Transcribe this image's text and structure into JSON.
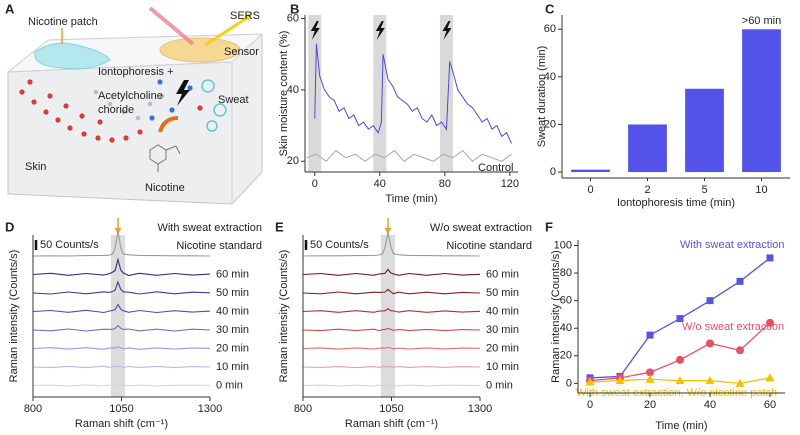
{
  "illustration": {
    "panel_label": "A",
    "labels": {
      "patch": "Nicotine patch",
      "sers": "SERS",
      "sensor": "Sensor",
      "iontophoresis": "Iontophoresis +",
      "acetylcholine": [
        "Acetylcholine",
        "choride"
      ],
      "sweat": "Sweat",
      "skin": "Skin",
      "nicotine": "Nicotine"
    }
  },
  "chart_data": [
    {
      "type": "line",
      "panel_label": "B",
      "x_label": "Time (min)",
      "y_label": "Skin moisture content (%)",
      "xlim": [
        -6,
        125
      ],
      "ylim": [
        17,
        61
      ],
      "xticks": [
        0,
        40,
        80,
        120
      ],
      "yticks": [
        20,
        40,
        60
      ],
      "stimulation_bands": [
        [
          -4,
          4
        ],
        [
          36,
          44
        ],
        [
          77,
          85
        ]
      ],
      "series": [
        {
          "color": "#4b4bd8",
          "x": [
            0,
            1,
            3,
            6,
            9,
            12,
            15,
            18,
            21,
            24,
            27,
            30,
            33,
            36,
            39,
            41,
            42,
            45,
            48,
            51,
            54,
            57,
            60,
            63,
            66,
            69,
            72,
            75,
            78,
            81,
            83,
            85,
            88,
            91,
            94,
            97,
            100,
            103,
            106,
            109,
            112,
            115,
            118,
            121
          ],
          "values": [
            32,
            53,
            44,
            40,
            38,
            37,
            34,
            35,
            32,
            33,
            30,
            31,
            29,
            30,
            28,
            31,
            50,
            43,
            41,
            38,
            37,
            36,
            34,
            35,
            32,
            31,
            33,
            30,
            31,
            29,
            48,
            45,
            40,
            38,
            36,
            35,
            33,
            31,
            32,
            29,
            30,
            27,
            28,
            25
          ]
        },
        {
          "name": "Control",
          "color": "#a8a8a8",
          "x": [
            -5,
            1,
            7,
            13,
            19,
            25,
            31,
            37,
            43,
            49,
            55,
            61,
            67,
            73,
            79,
            85,
            91,
            97,
            103,
            109,
            115,
            121
          ],
          "values": [
            21,
            22,
            20,
            23,
            21,
            22,
            20,
            22,
            21,
            23,
            20,
            22,
            21,
            20,
            22,
            21,
            23,
            20,
            22,
            21,
            20,
            22
          ]
        }
      ]
    },
    {
      "type": "bar",
      "panel_label": "C",
      "x_label": "Iontophoresis time (min)",
      "y_label": "Sweat duration (min)",
      "categories": [
        "0",
        "2",
        "5",
        "10"
      ],
      "values": [
        1,
        20,
        35,
        60
      ],
      "color": "#5353ea",
      "annotation": ">60 min",
      "ylim": [
        -2.5,
        66
      ],
      "yticks": [
        0,
        20,
        40,
        60
      ]
    },
    {
      "type": "spectra",
      "panel_label": "D",
      "title": "With sweat extraction",
      "x_label": "Raman shift (cm⁻¹)",
      "y_label": "Raman intensity (Counts/s)",
      "scale_bar": {
        "value": 50,
        "label": "50 Counts/s"
      },
      "highlight": [
        1020,
        1060
      ],
      "xlim": [
        800,
        1300
      ],
      "xticks": [
        800,
        1050,
        1300
      ],
      "x": [
        800,
        850,
        900,
        950,
        1000,
        1015,
        1025,
        1032,
        1040,
        1048,
        1055,
        1070,
        1100,
        1150,
        1200,
        1250,
        1300
      ],
      "series": [
        {
          "name": "Nicotine standard",
          "color": "#9a9a9a",
          "values": [
            0,
            1,
            0,
            2,
            3,
            4,
            10,
            40,
            125,
            40,
            10,
            6,
            3,
            2,
            1,
            1,
            0
          ]
        },
        {
          "name": "60 min",
          "color": "#2d2f7a",
          "values": [
            0,
            6,
            -4,
            5,
            -3,
            4,
            12,
            20,
            75,
            22,
            8,
            -5,
            6,
            -4,
            5,
            -3,
            2
          ]
        },
        {
          "name": "50 min",
          "color": "#3a3d99",
          "values": [
            0,
            -5,
            5,
            -4,
            6,
            3,
            8,
            15,
            55,
            18,
            6,
            4,
            -5,
            6,
            -4,
            4,
            1
          ]
        },
        {
          "name": "40 min",
          "color": "#4a4fb5",
          "values": [
            0,
            5,
            -4,
            6,
            -5,
            2,
            6,
            10,
            35,
            12,
            4,
            -4,
            5,
            -5,
            4,
            -3,
            2
          ]
        },
        {
          "name": "30 min",
          "color": "#6b6fd0",
          "values": [
            0,
            -4,
            5,
            -5,
            4,
            3,
            4,
            8,
            22,
            9,
            3,
            5,
            -4,
            4,
            -5,
            4,
            0
          ]
        },
        {
          "name": "20 min",
          "color": "#9a9de0",
          "values": [
            0,
            4,
            -3,
            4,
            -4,
            2,
            3,
            2,
            8,
            3,
            -2,
            3,
            -4,
            3,
            -3,
            2,
            1
          ]
        },
        {
          "name": "10 min",
          "color": "#b8bbea",
          "values": [
            0,
            -3,
            3,
            -3,
            4,
            -2,
            2,
            3,
            4,
            2,
            -3,
            3,
            -2,
            3,
            -3,
            2,
            0
          ]
        },
        {
          "name": "0 min",
          "color": "#d3d5f2",
          "values": [
            0,
            2,
            -2,
            3,
            -2,
            2,
            -1,
            2,
            1,
            -2,
            2,
            -2,
            2,
            -2,
            1,
            2,
            0
          ]
        }
      ]
    },
    {
      "type": "spectra",
      "panel_label": "E",
      "title": "W/o sweat extraction",
      "x_label": "Raman shift (cm⁻¹)",
      "y_label": "Raman intensity (Counts/s)",
      "scale_bar": {
        "value": 50,
        "label": "50 Counts/s"
      },
      "highlight": [
        1020,
        1060
      ],
      "xlim": [
        800,
        1300
      ],
      "xticks": [
        800,
        1050,
        1300
      ],
      "x": [
        800,
        850,
        900,
        950,
        1000,
        1015,
        1025,
        1032,
        1040,
        1048,
        1055,
        1070,
        1100,
        1150,
        1200,
        1250,
        1300
      ],
      "series": [
        {
          "name": "Nicotine standard",
          "color": "#9a9a9a",
          "values": [
            0,
            1,
            1,
            2,
            3,
            5,
            12,
            45,
            120,
            45,
            12,
            6,
            3,
            2,
            1,
            1,
            0
          ]
        },
        {
          "name": "60 min",
          "color": "#6b1a1a",
          "values": [
            0,
            5,
            -4,
            5,
            -4,
            3,
            4,
            6,
            25,
            8,
            3,
            -4,
            5,
            -4,
            5,
            -3,
            1
          ]
        },
        {
          "name": "50 min",
          "color": "#8b2020",
          "values": [
            0,
            -4,
            5,
            -4,
            4,
            3,
            4,
            5,
            18,
            6,
            -3,
            4,
            -4,
            4,
            -4,
            3,
            0
          ]
        },
        {
          "name": "40 min",
          "color": "#b03030",
          "values": [
            0,
            4,
            -4,
            4,
            -4,
            2,
            3,
            4,
            14,
            4,
            3,
            -3,
            4,
            -4,
            3,
            -3,
            1
          ]
        },
        {
          "name": "30 min",
          "color": "#d04848",
          "values": [
            0,
            -3,
            4,
            -3,
            4,
            -3,
            2,
            3,
            8,
            3,
            -2,
            3,
            -3,
            3,
            -3,
            2,
            0
          ]
        },
        {
          "name": "20 min",
          "color": "#e07070",
          "values": [
            0,
            3,
            -3,
            3,
            -3,
            2,
            2,
            2,
            5,
            2,
            -2,
            2,
            -3,
            3,
            -2,
            2,
            1
          ]
        },
        {
          "name": "10 min",
          "color": "#eba0a0",
          "values": [
            0,
            -2,
            2,
            -3,
            2,
            -2,
            2,
            1,
            3,
            1,
            -2,
            2,
            -2,
            2,
            -2,
            2,
            0
          ]
        },
        {
          "name": "0 min",
          "color": "#f3c8c8",
          "values": [
            0,
            2,
            -2,
            2,
            -2,
            1,
            -1,
            1,
            2,
            -1,
            1,
            -2,
            2,
            -2,
            1,
            1,
            0
          ]
        }
      ]
    },
    {
      "type": "line",
      "panel_label": "F",
      "x_label": "Time (min)",
      "y_label": "Raman intensity (Counts/s)",
      "xlim": [
        -4,
        65
      ],
      "ylim": [
        -7,
        104
      ],
      "xticks": [
        0,
        20,
        40,
        60
      ],
      "yticks": [
        0,
        20,
        40,
        60,
        80,
        100
      ],
      "x": [
        0,
        10,
        20,
        30,
        40,
        50,
        60
      ],
      "series": [
        {
          "name": "With sweat extraction",
          "color": "#5555e0",
          "marker": "square",
          "values": [
            4,
            5,
            35,
            47,
            60,
            74,
            91
          ]
        },
        {
          "name": "W/o sweat extraction",
          "color": "#e8506a",
          "marker": "circle",
          "values": [
            2,
            4,
            8,
            17,
            29,
            24,
            44
          ]
        },
        {
          "name": "With sweat extraction, W/o nicotine patch",
          "color": "#f2c200",
          "marker": "triangle",
          "values": [
            1,
            2,
            3,
            2,
            2,
            0,
            4
          ]
        }
      ]
    }
  ]
}
